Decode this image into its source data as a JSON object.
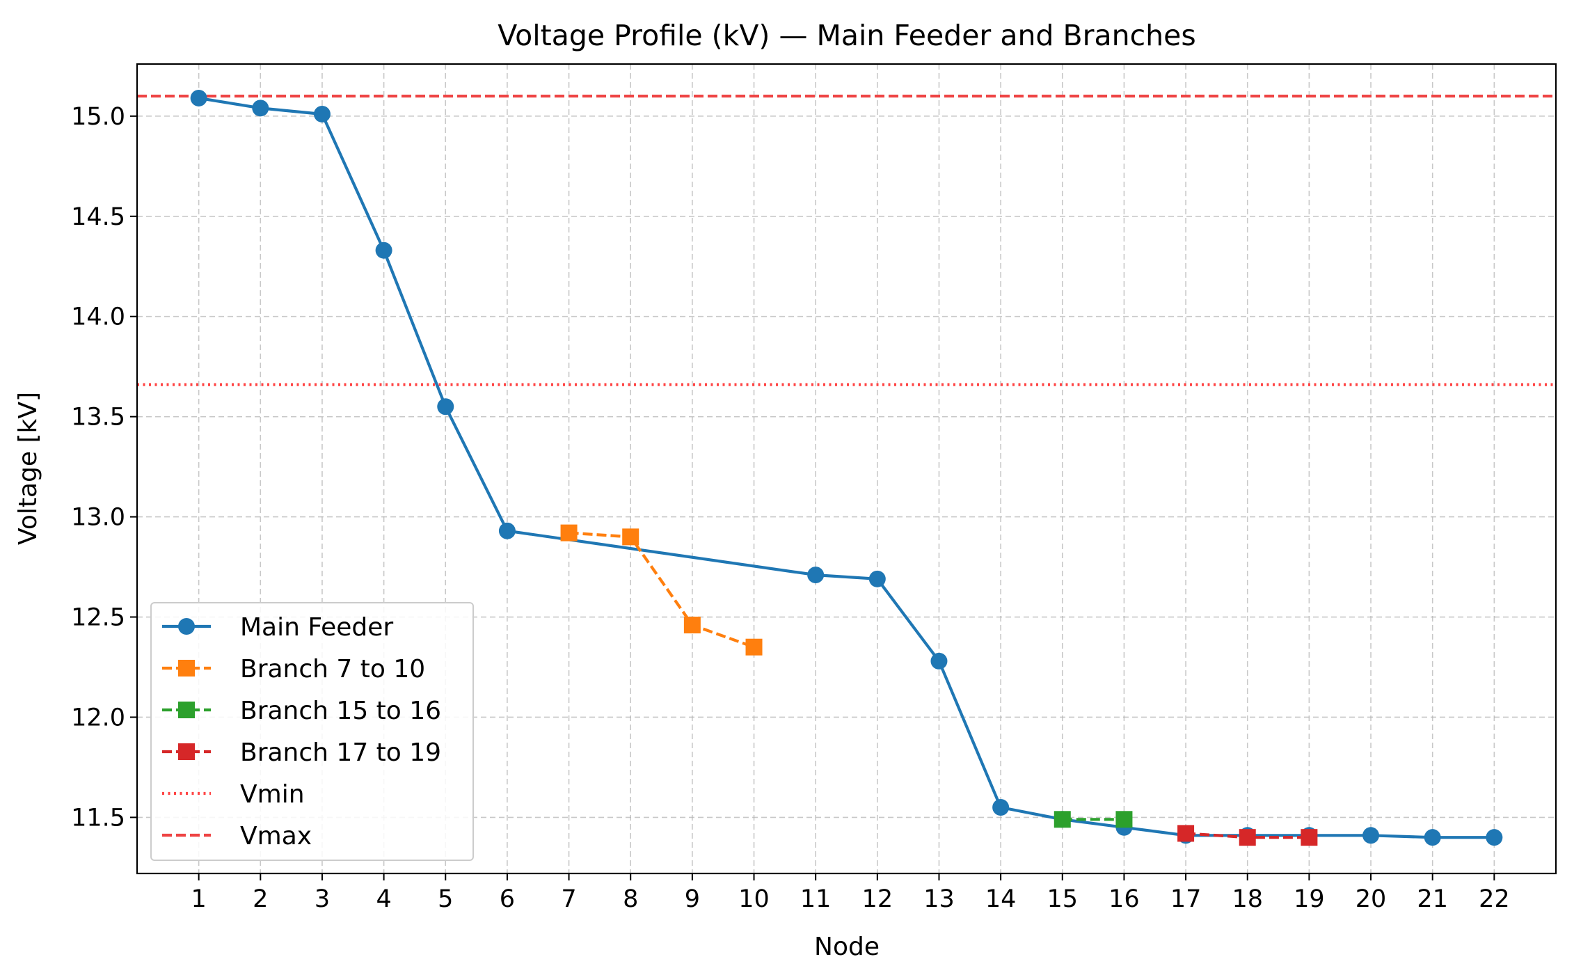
{
  "chart_data": {
    "type": "line",
    "title": "Voltage Profile (kV) — Main Feeder and Branches",
    "xlabel": "Node",
    "ylabel": "Voltage [kV]",
    "xlim": [
      0,
      23
    ],
    "ylim": [
      11.22,
      15.26
    ],
    "xticks": [
      "1",
      "2",
      "3",
      "4",
      "5",
      "6",
      "7",
      "8",
      "9",
      "10",
      "11",
      "12",
      "13",
      "14",
      "15",
      "16",
      "17",
      "18",
      "19",
      "20",
      "21",
      "22"
    ],
    "yticks": [
      "11.5",
      "12.0",
      "12.5",
      "13.0",
      "13.5",
      "14.0",
      "14.5",
      "15.0"
    ],
    "grid": true,
    "legend_position": "lower-left",
    "series": [
      {
        "name": "Main Feeder",
        "color": "#1f77b4",
        "style": "solid",
        "marker": "circle",
        "x": [
          1,
          2,
          3,
          4,
          5,
          6,
          11,
          12,
          13,
          14,
          15,
          16,
          17,
          18,
          19,
          20,
          21,
          22
        ],
        "values": [
          15.09,
          15.04,
          15.01,
          14.33,
          13.55,
          12.93,
          12.71,
          12.69,
          12.28,
          11.55,
          11.49,
          11.45,
          11.41,
          11.41,
          11.41,
          11.41,
          11.4,
          11.4
        ]
      },
      {
        "name": "Branch 7 to 10",
        "color": "#ff7f0e",
        "style": "dashed",
        "marker": "square",
        "x": [
          7,
          8,
          9,
          10
        ],
        "values": [
          12.92,
          12.9,
          12.46,
          12.35
        ]
      },
      {
        "name": "Branch 15 to 16",
        "color": "#2ca02c",
        "style": "dashed",
        "marker": "square",
        "x": [
          15,
          16
        ],
        "values": [
          11.49,
          11.49
        ]
      },
      {
        "name": "Branch 17 to 19",
        "color": "#d62728",
        "style": "dashed",
        "marker": "square",
        "x": [
          17,
          18,
          19
        ],
        "values": [
          11.42,
          11.4,
          11.4
        ]
      }
    ],
    "reference_lines": [
      {
        "name": "Vmin",
        "value": 13.66,
        "color": "#ff4444",
        "style": "dotted"
      },
      {
        "name": "Vmax",
        "value": 15.1,
        "color": "#ee4444",
        "style": "dashed"
      }
    ],
    "legend": [
      "Main Feeder",
      "Branch 7 to 10",
      "Branch 15 to 16",
      "Branch 17 to 19",
      "Vmin",
      "Vmax"
    ]
  }
}
